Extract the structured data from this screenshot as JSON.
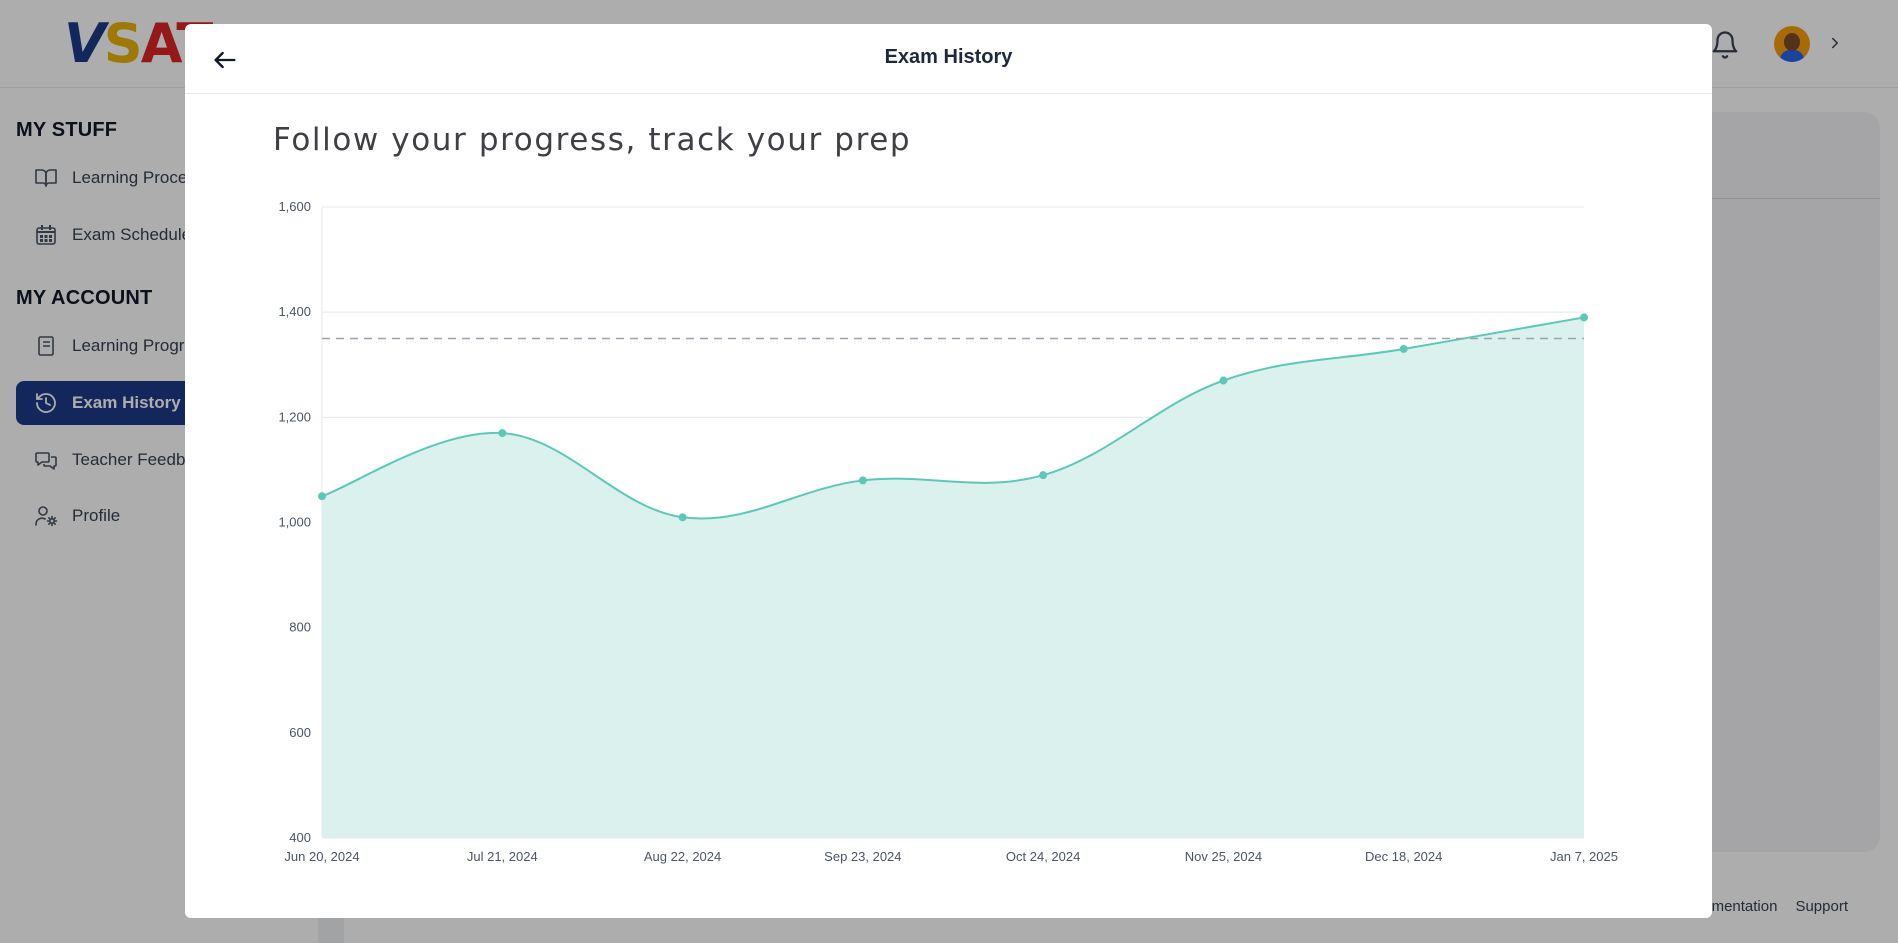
{
  "app": {
    "logo_text": [
      "V",
      "S",
      "A",
      "T"
    ],
    "header_icons": [
      "bell-icon",
      "avatar",
      "chevron-right-icon"
    ]
  },
  "sidebar": {
    "my_stuff_title": "MY STUFF",
    "my_stuff_items": [
      {
        "label": "Learning Proce",
        "icon": "book-open-icon"
      },
      {
        "label": "Exam Schedule",
        "icon": "calendar-icon"
      }
    ],
    "my_account_title": "MY ACCOUNT",
    "my_account_items": [
      {
        "label": "Learning Progr",
        "icon": "notebook-icon"
      },
      {
        "label": "Exam History",
        "icon": "history-icon",
        "active": true
      },
      {
        "label": "Teacher Feedb",
        "icon": "chat-bubbles-icon"
      },
      {
        "label": "Profile",
        "icon": "user-settings-icon"
      }
    ]
  },
  "footer": {
    "links": [
      "umentation",
      "Support"
    ]
  },
  "modal": {
    "title": "Exam History",
    "subtitle": "Follow your progress, track your prep"
  },
  "colors": {
    "accent": "#1e3a8a",
    "series_line": "#5ec8b8",
    "series_fill": "#dbf1ed",
    "target_line": "#9ca3af"
  },
  "chart_data": {
    "type": "area",
    "title": "",
    "xlabel": "",
    "ylabel": "",
    "x": [
      "Jun 20, 2024",
      "Jul 21, 2024",
      "Aug 22, 2024",
      "Sep 23, 2024",
      "Oct 24, 2024",
      "Nov 25, 2024",
      "Dec 18, 2024",
      "Jan 7, 2025"
    ],
    "series": [
      {
        "values": [
          1050,
          1170,
          1010,
          1080,
          1090,
          1270,
          1330,
          1390
        ]
      }
    ],
    "reference_line": 1350,
    "ylim": [
      400,
      1600
    ],
    "yticks": [
      400,
      600,
      800,
      1000,
      1200,
      1400,
      1600
    ],
    "ytick_labels": [
      "400",
      "600",
      "800",
      "1,000",
      "1,200",
      "1,400",
      "1,600"
    ],
    "grid": true,
    "legend": "none"
  }
}
